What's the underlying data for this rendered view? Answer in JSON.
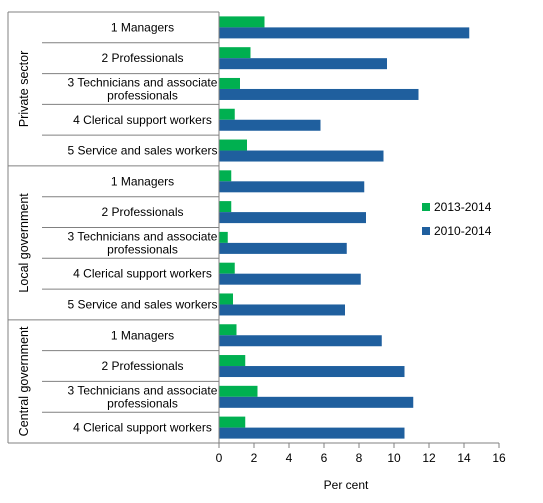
{
  "chart_data": {
    "type": "bar",
    "orientation": "horizontal",
    "xlabel": "Per cent",
    "xlim": [
      0,
      16
    ],
    "xticks": [
      0,
      2,
      4,
      6,
      8,
      10,
      12,
      14,
      16
    ],
    "grid": false,
    "legend_position": "right",
    "groups": [
      {
        "name": "Private sector",
        "categories": [
          "1 Managers",
          "2  Professionals",
          "3 Technicians and associate professionals",
          "4 Clerical support workers",
          "5 Service and sales workers"
        ]
      },
      {
        "name": "Local government",
        "categories": [
          "1 Managers",
          "2  Professionals",
          "3 Technicians and associate professionals",
          "4 Clerical support workers",
          "5 Service and sales workers"
        ]
      },
      {
        "name": "Central government",
        "categories": [
          "1 Managers",
          "2  Professionals",
          "3 Technicians and associate professionals",
          "4 Clerical support workers"
        ]
      }
    ],
    "series": [
      {
        "name": "2013-2014",
        "color": "#00b050",
        "values": [
          2.6,
          1.8,
          1.2,
          0.9,
          1.6,
          0.7,
          0.7,
          0.5,
          0.9,
          0.8,
          1.0,
          1.5,
          2.2,
          1.5
        ]
      },
      {
        "name": "2010-2014",
        "color": "#1f5f9e",
        "values": [
          14.3,
          9.6,
          11.4,
          5.8,
          9.4,
          8.3,
          8.4,
          7.3,
          8.1,
          7.2,
          9.3,
          10.6,
          11.1,
          10.6
        ]
      }
    ]
  }
}
